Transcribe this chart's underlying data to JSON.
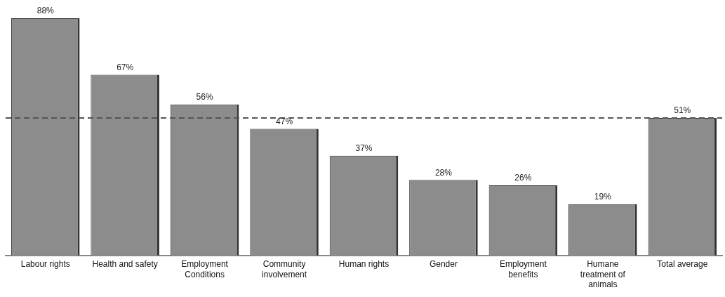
{
  "chart_data": {
    "type": "bar",
    "categories": [
      "Labour rights",
      "Health and safety",
      "Employment Conditions",
      "Community involvement",
      "Human rights",
      "Gender",
      "Employment benefits",
      "Humane treatment of animals",
      "Total average"
    ],
    "values": [
      88,
      67,
      56,
      47,
      37,
      28,
      26,
      19,
      51
    ],
    "value_labels": [
      "88%",
      "67%",
      "56%",
      "47%",
      "37%",
      "28%",
      "26%",
      "19%",
      "51%"
    ],
    "color": "#8c8c8c",
    "ref_lines": [
      {
        "axis": "y",
        "value": 51,
        "color": "#555555",
        "line_style": "dashed"
      }
    ],
    "grid": false,
    "legend": false
  }
}
